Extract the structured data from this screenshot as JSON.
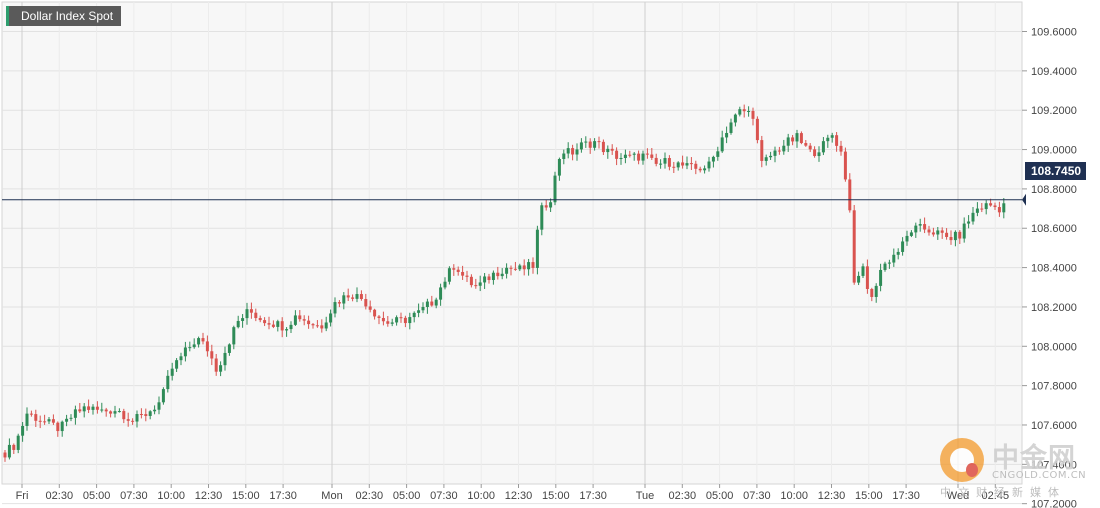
{
  "chart_data": {
    "type": "candlestick",
    "title": "Dollar Index Spot",
    "ylim": [
      107.3,
      109.75
    ],
    "yticks": [
      "109.6000",
      "109.4000",
      "109.2000",
      "109.0000",
      "108.8000",
      "108.6000",
      "108.4000",
      "108.2000",
      "108.0000",
      "107.8000",
      "107.6000",
      "107.4000",
      "107.2000"
    ],
    "xticks": [
      "Fri",
      "02:30",
      "05:00",
      "07:30",
      "10:00",
      "12:30",
      "15:00",
      "17:30",
      "Mon",
      "02:30",
      "05:00",
      "07:30",
      "10:00",
      "12:30",
      "15:00",
      "17:30",
      "Tue",
      "02:30",
      "05:00",
      "07:30",
      "10:00",
      "12:30",
      "15:00",
      "17:30",
      "Wed",
      "02:45"
    ],
    "day_separators": [
      "Fri",
      "Mon",
      "Tue",
      "Wed"
    ],
    "last_price": "108.7450",
    "last_price_value": 108.745,
    "grid": true,
    "colors": {
      "up": "#2e8b57",
      "down": "#d9534f",
      "price_line": "#1f3052",
      "grid": "#e2e2e2",
      "bg": "#f7f7f7"
    },
    "close_path": [
      [
        0,
        107.46
      ],
      [
        10,
        107.5
      ],
      [
        22,
        107.66
      ],
      [
        38,
        107.62
      ],
      [
        55,
        107.58
      ],
      [
        68,
        107.65
      ],
      [
        80,
        107.69
      ],
      [
        96,
        107.67
      ],
      [
        112,
        107.68
      ],
      [
        128,
        107.62
      ],
      [
        142,
        107.66
      ],
      [
        156,
        107.72
      ],
      [
        166,
        107.88
      ],
      [
        180,
        107.97
      ],
      [
        192,
        108.04
      ],
      [
        202,
        107.99
      ],
      [
        212,
        107.88
      ],
      [
        222,
        108.0
      ],
      [
        232,
        108.12
      ],
      [
        244,
        108.18
      ],
      [
        256,
        108.14
      ],
      [
        268,
        108.12
      ],
      [
        280,
        108.1
      ],
      [
        292,
        108.16
      ],
      [
        304,
        108.12
      ],
      [
        316,
        108.1
      ],
      [
        330,
        108.22
      ],
      [
        345,
        108.27
      ],
      [
        358,
        108.24
      ],
      [
        368,
        108.18
      ],
      [
        380,
        108.12
      ],
      [
        398,
        108.13
      ],
      [
        414,
        108.17
      ],
      [
        428,
        108.23
      ],
      [
        440,
        108.34
      ],
      [
        450,
        108.42
      ],
      [
        460,
        108.34
      ],
      [
        472,
        108.3
      ],
      [
        486,
        108.36
      ],
      [
        500,
        108.4
      ],
      [
        515,
        108.39
      ],
      [
        528,
        108.41
      ],
      [
        535,
        108.68
      ],
      [
        546,
        108.76
      ],
      [
        556,
        109.0
      ],
      [
        566,
        108.98
      ],
      [
        576,
        109.02
      ],
      [
        590,
        109.04
      ],
      [
        602,
        108.99
      ],
      [
        615,
        108.96
      ],
      [
        628,
        108.96
      ],
      [
        640,
        108.97
      ],
      [
        650,
        108.92
      ],
      [
        662,
        108.94
      ],
      [
        676,
        108.92
      ],
      [
        690,
        108.9
      ],
      [
        705,
        108.92
      ],
      [
        716,
        109.05
      ],
      [
        726,
        109.14
      ],
      [
        736,
        109.2
      ],
      [
        748,
        109.18
      ],
      [
        756,
        108.92
      ],
      [
        768,
        108.98
      ],
      [
        780,
        109.03
      ],
      [
        792,
        109.06
      ],
      [
        806,
        108.98
      ],
      [
        818,
        109.02
      ],
      [
        828,
        109.08
      ],
      [
        838,
        108.96
      ],
      [
        845,
        108.68
      ],
      [
        850,
        108.28
      ],
      [
        858,
        108.4
      ],
      [
        866,
        108.22
      ],
      [
        874,
        108.38
      ],
      [
        884,
        108.44
      ],
      [
        896,
        108.5
      ],
      [
        906,
        108.59
      ],
      [
        918,
        108.6
      ],
      [
        930,
        108.58
      ],
      [
        942,
        108.55
      ],
      [
        954,
        108.56
      ],
      [
        962,
        108.63
      ],
      [
        972,
        108.7
      ],
      [
        984,
        108.72
      ],
      [
        994,
        108.7
      ],
      [
        1002,
        108.745
      ]
    ]
  }
}
